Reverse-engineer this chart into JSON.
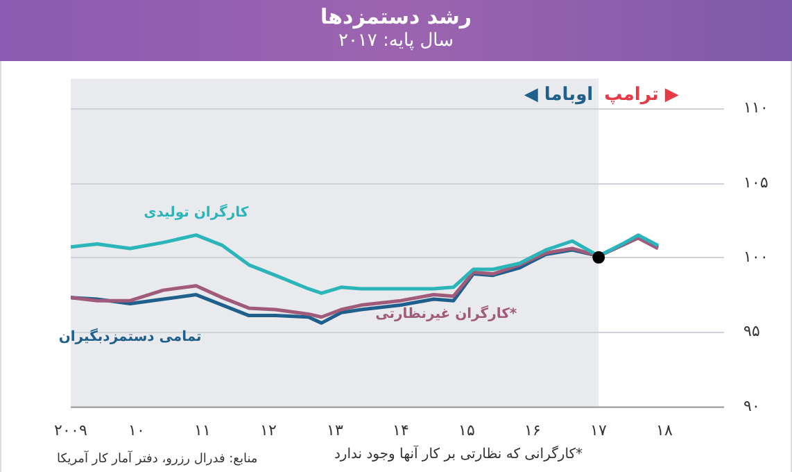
{
  "chart_data": {
    "type": "line",
    "title": "رشد دستمزدها",
    "subtitle": "سال پایه: ۲۰۱۷",
    "x": [
      2009,
      2009.4,
      2009.9,
      2010.4,
      2010.9,
      2011.3,
      2011.7,
      2012.1,
      2012.6,
      2012.8,
      2013.1,
      2013.4,
      2014.0,
      2014.5,
      2014.8,
      2015.1,
      2015.4,
      2015.8,
      2016.2,
      2016.6,
      2017,
      2017.4,
      2017.6,
      2017.9
    ],
    "series": [
      {
        "name": "کارگران تولیدی",
        "color": "#2bb5b8",
        "values": [
          100.7,
          100.9,
          100.6,
          101.0,
          101.5,
          100.8,
          99.5,
          98.8,
          97.9,
          97.6,
          98.0,
          97.9,
          97.9,
          97.9,
          98.0,
          99.2,
          99.2,
          99.6,
          100.5,
          101.1,
          100.1,
          101.0,
          101.5,
          100.8
        ]
      },
      {
        "name": "کارگران غیرنظارتی*",
        "color": "#a05a7a",
        "values": [
          97.3,
          97.1,
          97.1,
          97.8,
          98.1,
          97.3,
          96.6,
          96.5,
          96.2,
          96.0,
          96.5,
          96.8,
          97.1,
          97.5,
          97.4,
          99.0,
          98.9,
          99.5,
          100.3,
          100.6,
          100.1,
          100.9,
          101.3,
          100.6
        ]
      },
      {
        "name": "تمامی دستمزدبگیران",
        "color": "#1f5f8b",
        "values": [
          97.3,
          97.2,
          96.9,
          97.2,
          97.5,
          96.8,
          96.1,
          96.1,
          96.0,
          95.6,
          96.3,
          96.5,
          96.8,
          97.2,
          97.1,
          98.9,
          98.8,
          99.3,
          100.2,
          100.5,
          100.1,
          100.9,
          101.4,
          100.7
        ]
      },
      {
        "type": "scatter",
        "color": "#000000",
        "x": [
          2017
        ],
        "values": [
          100
        ]
      }
    ],
    "xlim": [
      2009,
      2018.9
    ],
    "xticks": [
      {
        "value": 2009,
        "label": "۲۰۰۹"
      },
      {
        "value": 2010,
        "label": "۱۰"
      },
      {
        "value": 2011,
        "label": "۱۱"
      },
      {
        "value": 2012,
        "label": "۱۲"
      },
      {
        "value": 2013,
        "label": "۱۳"
      },
      {
        "value": 2014,
        "label": "۱۴"
      },
      {
        "value": 2015,
        "label": "۱۵"
      },
      {
        "value": 2016,
        "label": "۱۶"
      },
      {
        "value": 2017,
        "label": "۱۷"
      },
      {
        "value": 2018,
        "label": "۱۸"
      }
    ],
    "ylim": [
      90,
      112
    ],
    "yticks": [
      {
        "value": 90,
        "label": "۹۰"
      },
      {
        "value": 95,
        "label": "۹۵"
      },
      {
        "value": 100,
        "label": "۱۰۰"
      },
      {
        "value": 105,
        "label": "۱۰۵"
      },
      {
        "value": 110,
        "label": "۱۱۰"
      }
    ],
    "grid": "y",
    "legend": false,
    "bands": [
      {
        "axis": "x",
        "from": 2009,
        "to": 2017,
        "label": "◀ اوباما",
        "color": "#e8eaed"
      }
    ],
    "annotations": [
      "ترامپ ▶",
      "منابع: فدرال رزرو، دفتر آمار کار آمریکا",
      "*کارگرانی که نظارتی بر کار آنها وجود ندارد"
    ]
  }
}
